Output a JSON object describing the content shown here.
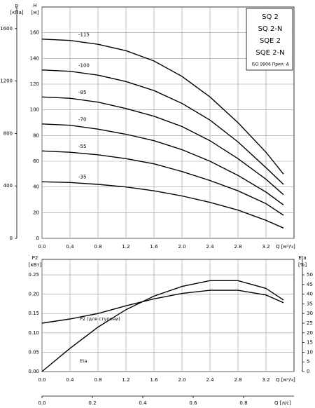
{
  "chart_data": [
    {
      "type": "line",
      "y_label": "H",
      "y_unit": "[м]",
      "y2_label": "p",
      "y2_unit": "[кПа]",
      "x_label": "Q [м³/ч]",
      "legend_box": [
        "SQ 2",
        "SQ 2-N",
        "SQE 2",
        "SQE 2-N"
      ],
      "note": "ISO 9906 Прил. A",
      "x": [
        0,
        0.4,
        0.8,
        1.2,
        1.6,
        2.0,
        2.4,
        2.8,
        3.2,
        3.45
      ],
      "xlim": [
        0,
        3.6
      ],
      "xticks": [
        {
          "value": 0,
          "label": "0.0"
        },
        0.4,
        0.8,
        1.2,
        1.6,
        {
          "value": 2,
          "label": "2.0"
        },
        2.4,
        2.8,
        3.2
      ],
      "ylim": [
        0,
        180
      ],
      "yticks": [
        0,
        20,
        40,
        60,
        80,
        100,
        120,
        140,
        160
      ],
      "y2lim": [
        0,
        1765
      ],
      "y2ticks": [
        0,
        400,
        800,
        1200,
        1600
      ],
      "grid": true,
      "color": "#000000",
      "series": [
        {
          "name": "-115",
          "values": [
            155,
            154,
            151,
            146,
            138,
            126,
            110,
            90,
            67,
            50
          ]
        },
        {
          "name": "-100",
          "values": [
            131,
            130,
            127,
            122,
            115,
            105,
            92,
            75,
            55,
            42
          ]
        },
        {
          "name": "-85",
          "values": [
            110,
            109,
            106,
            101,
            95,
            87,
            76,
            62,
            46,
            34
          ]
        },
        {
          "name": "-70",
          "values": [
            89,
            88,
            85,
            81,
            76,
            69,
            60,
            49,
            36,
            26
          ]
        },
        {
          "name": "-55",
          "values": [
            68,
            67,
            65,
            62,
            58,
            52,
            45,
            37,
            27,
            18
          ]
        },
        {
          "name": "-35",
          "values": [
            44,
            43.5,
            42,
            40,
            37,
            33,
            28,
            22,
            14,
            8
          ]
        }
      ]
    },
    {
      "type": "line",
      "y_label": "P2",
      "y_unit": "[кВт]",
      "y2_label": "Eta",
      "y2_unit": "[%]",
      "x_label": "Q [м³/ч]",
      "x2_label": "Q [л/с]",
      "x": [
        0,
        0.4,
        0.8,
        1.2,
        1.6,
        2.0,
        2.4,
        2.8,
        3.2,
        3.45
      ],
      "xlim": [
        0,
        3.6
      ],
      "xticks": [
        {
          "value": 0,
          "label": "0.0"
        },
        0.4,
        0.8,
        1.2,
        1.6,
        {
          "value": 2,
          "label": "2.0"
        },
        2.4,
        2.8,
        3.2
      ],
      "x2lim": [
        0,
        1.0
      ],
      "x2ticks": [
        {
          "value": 0,
          "label": "0.0"
        },
        0.2,
        0.4,
        0.6,
        0.8
      ],
      "ylim": [
        0,
        0.29
      ],
      "yticks": [
        {
          "value": 0,
          "label": "0.00"
        },
        0.05,
        {
          "value": 0.1,
          "label": "0.10"
        },
        0.15,
        {
          "value": 0.2,
          "label": "0.20"
        },
        0.25
      ],
      "y2lim": [
        0,
        58
      ],
      "y2ticks": [
        0,
        5,
        10,
        15,
        20,
        25,
        30,
        35,
        40,
        45,
        50
      ],
      "grid": true,
      "color": "#000000",
      "series": [
        {
          "name": "P2 (для ступени)",
          "values": [
            0.125,
            0.136,
            0.15,
            0.17,
            0.188,
            0.202,
            0.21,
            0.21,
            0.198,
            0.178
          ]
        },
        {
          "name": "Eta",
          "axis": "y2",
          "values": [
            0,
            12,
            23,
            32,
            39,
            44,
            47,
            47,
            43,
            37
          ]
        }
      ]
    }
  ]
}
